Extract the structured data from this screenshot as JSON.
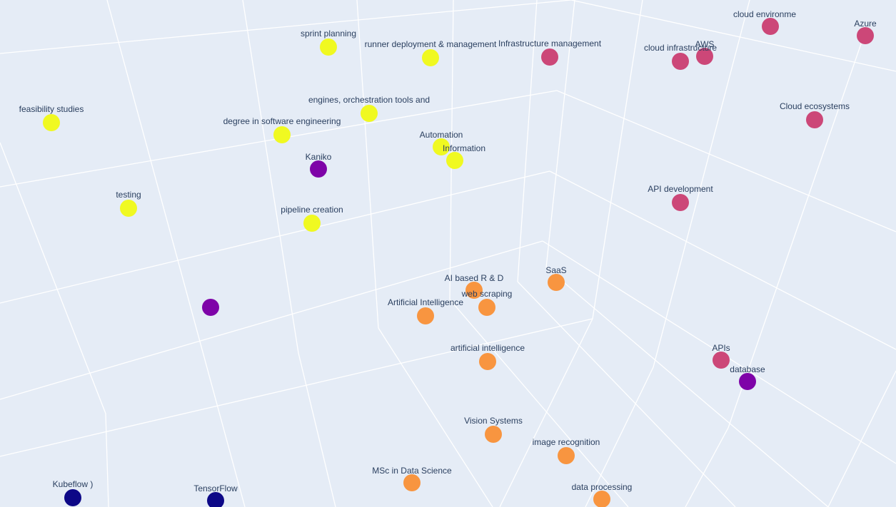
{
  "chart_data": {
    "type": "scatter3d",
    "title": "",
    "grid": true,
    "legend": "none",
    "colors": {
      "background": "#e5ecf6",
      "grid": "#ffffff",
      "label": "#2a3f5f",
      "cluster_yellow": "#f0f921",
      "cluster_pink": "#cc4778",
      "cluster_orange": "#f89540",
      "cluster_purple": "#7e03a8",
      "cluster_navy": "#0d0887"
    },
    "points": [
      {
        "label": "sprint planning",
        "x": -0.8,
        "y": 0.2,
        "z": 0.9,
        "cluster": 0
      },
      {
        "label": "runner deployment & management",
        "x": -0.3,
        "y": 0.25,
        "z": 0.85,
        "cluster": 0
      },
      {
        "label": "engines, orchestration tools and",
        "x": -0.4,
        "y": 0.1,
        "z": 0.65,
        "cluster": 0
      },
      {
        "label": "feasibility studies",
        "x": -1.6,
        "y": 0.0,
        "z": 0.55,
        "cluster": 0
      },
      {
        "label": "degree in software engineering",
        "x": -0.8,
        "y": 0.1,
        "z": 0.5,
        "cluster": 0
      },
      {
        "label": "Automation",
        "x": -0.2,
        "y": 0.05,
        "z": 0.45,
        "cluster": 0
      },
      {
        "label": "Information",
        "x": -0.15,
        "y": 0.05,
        "z": 0.4,
        "cluster": 0
      },
      {
        "label": "testing",
        "x": -1.3,
        "y": -0.05,
        "z": 0.2,
        "cluster": 0
      },
      {
        "label": "pipeline creation",
        "x": -0.7,
        "y": -0.05,
        "z": 0.15,
        "cluster": 0
      },
      {
        "label": "Infrastructure management",
        "x": 0.3,
        "y": 0.3,
        "z": 0.9,
        "cluster": 1
      },
      {
        "label": "cloud infrastructure",
        "x": 0.8,
        "y": 0.3,
        "z": 0.85,
        "cluster": 1
      },
      {
        "label": "AWS",
        "x": 0.9,
        "y": 0.3,
        "z": 0.88,
        "cluster": 1
      },
      {
        "label": "cloud environme",
        "x": 1.1,
        "y": 0.4,
        "z": 1.0,
        "cluster": 1
      },
      {
        "label": "Azure",
        "x": 1.5,
        "y": 0.4,
        "z": 0.95,
        "cluster": 1
      },
      {
        "label": "Cloud ecosystems",
        "x": 1.4,
        "y": 0.3,
        "z": 0.6,
        "cluster": 1
      },
      {
        "label": "API development",
        "x": 0.9,
        "y": 0.1,
        "z": 0.1,
        "cluster": 1
      },
      {
        "label": "APIs",
        "x": 1.0,
        "y": -0.2,
        "z": -0.5,
        "cluster": 1
      },
      {
        "label": "Kaniko",
        "x": -0.7,
        "y": 0.0,
        "z": 0.35,
        "cluster": 3
      },
      {
        "label": "",
        "x": -1.1,
        "y": -0.2,
        "z": -0.2,
        "cluster": 3
      },
      {
        "label": "database",
        "x": 1.1,
        "y": -0.25,
        "z": -0.6,
        "cluster": 3
      },
      {
        "label": "SaaS",
        "x": 0.3,
        "y": -0.1,
        "z": -0.2,
        "cluster": 2
      },
      {
        "label": "AI based R & D",
        "x": 0.0,
        "y": -0.15,
        "z": -0.25,
        "cluster": 2
      },
      {
        "label": "web scraping",
        "x": 0.05,
        "y": -0.15,
        "z": -0.3,
        "cluster": 2
      },
      {
        "label": "Artificial Intelligence",
        "x": -0.1,
        "y": -0.15,
        "z": -0.33,
        "cluster": 2
      },
      {
        "label": "artificial intelligence",
        "x": 0.05,
        "y": -0.25,
        "z": -0.5,
        "cluster": 2
      },
      {
        "label": "Vision Systems",
        "x": 0.05,
        "y": -0.35,
        "z": -0.75,
        "cluster": 2
      },
      {
        "label": "image recognition",
        "x": 0.3,
        "y": -0.35,
        "z": -0.8,
        "cluster": 2
      },
      {
        "label": "MSc in Data Science",
        "x": -0.2,
        "y": -0.4,
        "z": -0.95,
        "cluster": 2
      },
      {
        "label": "data processing",
        "x": 0.4,
        "y": -0.4,
        "z": -1.0,
        "cluster": 2
      },
      {
        "label": "Kubeflow )",
        "x": -1.6,
        "y": -0.5,
        "z": -1.0,
        "cluster": 4
      },
      {
        "label": "TensorFlow",
        "x": -1.2,
        "y": -0.5,
        "z": -1.0,
        "cluster": 4
      }
    ]
  }
}
